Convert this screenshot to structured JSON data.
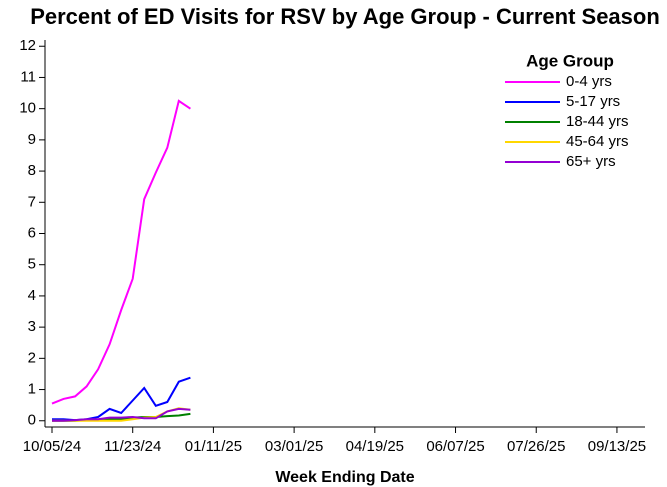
{
  "chart_data": {
    "type": "line",
    "title": "Percent of ED Visits for RSV by Age Group - Current Season",
    "x_label": "Week Ending Date",
    "legend_title": "Age Group",
    "legend": "top-right",
    "grid": false,
    "x": [
      "10/05/24",
      "10/12/24",
      "10/19/24",
      "10/26/24",
      "11/02/24",
      "11/09/24",
      "11/16/24",
      "11/23/24",
      "11/30/24",
      "12/07/24",
      "12/14/24",
      "12/21/24",
      "12/28/24"
    ],
    "series": [
      {
        "name": "0-4 yrs",
        "color": "#ff00ff",
        "values": [
          0.55,
          0.7,
          0.78,
          1.1,
          1.65,
          2.45,
          3.55,
          4.55,
          7.1,
          7.95,
          8.75,
          10.25,
          10.0
        ]
      },
      {
        "name": "5-17 yrs",
        "color": "#0000ff",
        "values": [
          0.05,
          0.05,
          0.02,
          0.05,
          0.12,
          0.38,
          0.25,
          0.65,
          1.05,
          0.48,
          0.6,
          1.25,
          1.38
        ]
      },
      {
        "name": "18-44 yrs",
        "color": "#008000",
        "values": [
          0.0,
          0.0,
          0.0,
          0.02,
          0.03,
          0.05,
          0.05,
          0.1,
          0.12,
          0.12,
          0.15,
          0.17,
          0.22
        ]
      },
      {
        "name": "45-64 yrs",
        "color": "#ffd700",
        "values": [
          0.0,
          0.0,
          0.0,
          0.0,
          0.0,
          0.0,
          0.0,
          0.05,
          0.1,
          0.12,
          0.3,
          0.4,
          0.35
        ]
      },
      {
        "name": "65+ yrs",
        "color": "#9400d3",
        "values": [
          0.0,
          0.0,
          0.02,
          0.05,
          0.05,
          0.1,
          0.1,
          0.12,
          0.08,
          0.08,
          0.3,
          0.38,
          0.35
        ]
      }
    ],
    "xlim": [
      "10/05/24",
      "09/27/25"
    ],
    "xticks": [
      "10/05/24",
      "11/23/24",
      "01/11/25",
      "03/01/25",
      "04/19/25",
      "06/07/25",
      "07/26/25",
      "09/13/25"
    ],
    "ylim": [
      -0.2,
      12.2
    ],
    "yticks": [
      0,
      1,
      2,
      3,
      4,
      5,
      6,
      7,
      8,
      9,
      10,
      11,
      12
    ]
  }
}
